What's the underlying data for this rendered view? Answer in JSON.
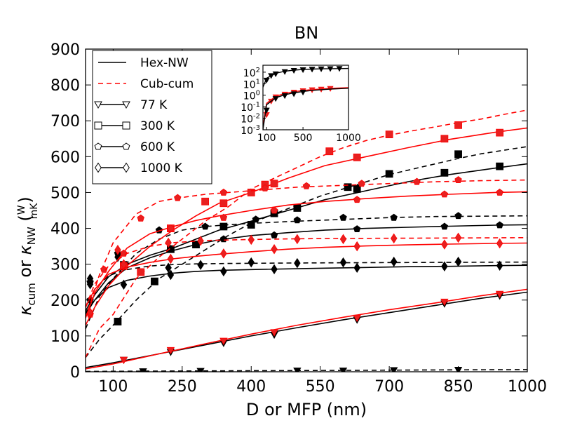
{
  "chart_data": {
    "type": "line",
    "title": "BN",
    "xlabel": "D or MFP (nm)",
    "ylabel_parts": [
      "κ",
      "cum",
      " or ",
      "κ",
      "NW",
      "W",
      "mK"
    ],
    "xlim": [
      40,
      1000
    ],
    "ylim": [
      0,
      900
    ],
    "x_ticks": [
      "100",
      "250",
      "400",
      "550",
      "700",
      "850",
      "1000"
    ],
    "x_tick_values": [
      100,
      250,
      400,
      550,
      700,
      850,
      1000
    ],
    "y_ticks": [
      "0",
      "100",
      "200",
      "300",
      "400",
      "500",
      "600",
      "700",
      "800",
      "900"
    ],
    "y_tick_values": [
      0,
      100,
      200,
      300,
      400,
      500,
      600,
      700,
      800,
      900
    ],
    "grid": false,
    "legend_position": "top-left",
    "legend": [
      {
        "label": "Hex-NW",
        "style": "solid",
        "color": "#000000",
        "marker": "none"
      },
      {
        "label": "Cub-cum",
        "style": "dashed",
        "color": "#ff0000",
        "marker": "none"
      },
      {
        "label": "77 K",
        "style": "solid",
        "color": "#000000",
        "marker": "triangle-down"
      },
      {
        "label": "300 K",
        "style": "solid",
        "color": "#000000",
        "marker": "square"
      },
      {
        "label": "600 K",
        "style": "solid",
        "color": "#000000",
        "marker": "pentagon"
      },
      {
        "label": "1000 K",
        "style": "solid",
        "color": "#000000",
        "marker": "diamond"
      }
    ],
    "colors": {
      "black": "#000000",
      "red": "#ff0000",
      "marker_red": "#e82020"
    },
    "series": [
      {
        "group": "Hex-NW",
        "temperature": "300 K",
        "color": "black",
        "style": "solid",
        "marker": "square",
        "x": [
          40,
          60,
          90,
          130,
          180,
          230,
          280,
          330,
          400,
          480,
          560,
          650,
          740,
          830,
          930,
          1000
        ],
        "y": [
          170,
          215,
          265,
          300,
          325,
          345,
          370,
          395,
          420,
          450,
          480,
          505,
          530,
          550,
          568,
          580
        ],
        "mx": [
          123,
          225,
          340,
          450,
          630,
          820,
          940
        ],
        "my": [
          298,
          342,
          405,
          442,
          510,
          555,
          573
        ]
      },
      {
        "group": "Hex-NW",
        "temperature": "600 K",
        "color": "black",
        "style": "solid",
        "marker": "pentagon",
        "x": [
          40,
          60,
          90,
          130,
          180,
          230,
          280,
          330,
          400,
          480,
          560,
          650,
          740,
          830,
          930,
          1000
        ],
        "y": [
          165,
          200,
          248,
          290,
          318,
          338,
          355,
          368,
          380,
          388,
          395,
          400,
          403,
          406,
          409,
          410
        ],
        "mx": [
          50,
          123,
          225,
          340,
          450,
          630,
          820,
          940
        ],
        "my": [
          200,
          292,
          343,
          370,
          381,
          398,
          405,
          409
        ]
      },
      {
        "group": "Hex-NW",
        "temperature": "1000 K",
        "color": "black",
        "style": "solid",
        "marker": "diamond",
        "x": [
          40,
          60,
          90,
          130,
          180,
          230,
          280,
          330,
          400,
          480,
          560,
          650,
          740,
          830,
          930,
          1000
        ],
        "y": [
          160,
          200,
          235,
          255,
          267,
          275,
          280,
          283,
          285,
          287,
          289,
          291,
          293,
          294,
          296,
          297
        ],
        "mx": [
          50,
          123,
          225,
          340,
          450,
          630,
          820,
          940
        ],
        "my": [
          244,
          243,
          270,
          280,
          286,
          290,
          294,
          296
        ]
      },
      {
        "group": "Hex-NW",
        "temperature": "77 K",
        "color": "black",
        "style": "solid",
        "marker": "triangle-down",
        "x": [
          40,
          100,
          200,
          300,
          400,
          500,
          600,
          700,
          800,
          900,
          1000
        ],
        "y": [
          12,
          25,
          50,
          75,
          100,
          123,
          145,
          165,
          185,
          205,
          222
        ],
        "mx": [
          123,
          225,
          340,
          450,
          630,
          820,
          940
        ],
        "my": [
          33,
          55,
          80,
          103,
          145,
          190,
          212
        ]
      },
      {
        "group": "Hex-NW",
        "temperature": "300 K",
        "color": "black",
        "style": "dashed",
        "marker": "square",
        "x": [
          40,
          70,
          100,
          150,
          200,
          250,
          300,
          350,
          400,
          450,
          500,
          550,
          600,
          650,
          700,
          750,
          800,
          850,
          900,
          950,
          1000
        ],
        "y": [
          40,
          90,
          130,
          200,
          260,
          300,
          340,
          380,
          415,
          440,
          465,
          490,
          510,
          530,
          550,
          565,
          580,
          595,
          608,
          618,
          628
        ],
        "mx": [
          110,
          190,
          280,
          400,
          500,
          610,
          700,
          850
        ],
        "my": [
          140,
          252,
          355,
          410,
          457,
          515,
          552,
          607
        ]
      },
      {
        "group": "Hex-NW",
        "temperature": "600 K",
        "color": "black",
        "style": "dashed",
        "marker": "pentagon",
        "x": [
          40,
          70,
          100,
          150,
          200,
          250,
          300,
          350,
          400,
          500,
          600,
          700,
          800,
          900,
          1000
        ],
        "y": [
          120,
          210,
          260,
          330,
          370,
          395,
          405,
          410,
          414,
          420,
          425,
          430,
          433,
          434,
          435
        ],
        "mx": [
          50,
          110,
          200,
          300,
          410,
          500,
          600,
          710,
          850
        ],
        "my": [
          250,
          330,
          395,
          405,
          425,
          423,
          430,
          430,
          435
        ]
      },
      {
        "group": "Hex-NW",
        "temperature": "1000 K",
        "color": "black",
        "style": "dashed",
        "marker": "diamond",
        "x": [
          40,
          60,
          90,
          130,
          180,
          230,
          280,
          350,
          450,
          600,
          800,
          1000
        ],
        "y": [
          180,
          230,
          268,
          285,
          295,
          299,
          301,
          302,
          303,
          304,
          305,
          306
        ],
        "mx": [
          50,
          110,
          220,
          290,
          400,
          500,
          600,
          710,
          850
        ],
        "my": [
          260,
          320,
          290,
          298,
          305,
          303,
          305,
          307,
          307
        ]
      },
      {
        "group": "Hex-NW",
        "temperature": "77 K",
        "color": "black",
        "style": "dashed",
        "marker": "triangle-down",
        "x": [
          40,
          200,
          400,
          600,
          800,
          1000
        ],
        "y": [
          1,
          2,
          3,
          4,
          5,
          6
        ],
        "mx": [
          165,
          290,
          500,
          600,
          710,
          850
        ],
        "my": [
          1,
          2,
          3,
          3,
          4,
          5
        ]
      },
      {
        "group": "Cub-cum",
        "temperature": "300 K",
        "color": "red",
        "style": "solid",
        "marker": "square",
        "x": [
          40,
          60,
          90,
          130,
          180,
          230,
          280,
          330,
          400,
          480,
          560,
          650,
          740,
          830,
          930,
          1000
        ],
        "y": [
          130,
          180,
          240,
          295,
          350,
          395,
          435,
          470,
          500,
          540,
          575,
          600,
          625,
          648,
          668,
          680
        ],
        "mx": [
          123,
          225,
          340,
          450,
          630,
          820,
          940
        ],
        "my": [
          295,
          400,
          470,
          525,
          598,
          650,
          667
        ]
      },
      {
        "group": "Cub-cum",
        "temperature": "600 K",
        "color": "red",
        "style": "solid",
        "marker": "pentagon",
        "x": [
          40,
          60,
          90,
          130,
          180,
          230,
          280,
          330,
          400,
          480,
          560,
          650,
          740,
          830,
          930,
          1000
        ],
        "y": [
          150,
          220,
          280,
          345,
          385,
          405,
          422,
          435,
          450,
          465,
          475,
          483,
          490,
          495,
          500,
          502
        ],
        "mx": [
          123,
          225,
          340,
          450,
          630,
          820,
          940
        ],
        "my": [
          330,
          400,
          430,
          450,
          480,
          495,
          500
        ]
      },
      {
        "group": "Cub-cum",
        "temperature": "1000 K",
        "color": "red",
        "style": "solid",
        "marker": "diamond",
        "x": [
          40,
          60,
          90,
          130,
          180,
          230,
          280,
          330,
          400,
          480,
          560,
          650,
          740,
          830,
          930,
          1000
        ],
        "y": [
          180,
          230,
          272,
          292,
          305,
          315,
          322,
          328,
          335,
          342,
          347,
          351,
          354,
          356,
          358,
          359
        ],
        "mx": [
          123,
          225,
          340,
          450,
          630,
          820,
          940
        ],
        "my": [
          300,
          315,
          330,
          342,
          350,
          355,
          358
        ]
      },
      {
        "group": "Cub-cum",
        "temperature": "77 K",
        "color": "red",
        "style": "solid",
        "marker": "triangle-down",
        "x": [
          40,
          100,
          200,
          300,
          400,
          500,
          600,
          700,
          800,
          900,
          1000
        ],
        "y": [
          8,
          22,
          50,
          78,
          105,
          130,
          152,
          173,
          192,
          212,
          230
        ],
        "mx": [
          123,
          225,
          340,
          450,
          630,
          820,
          940
        ],
        "my": [
          33,
          60,
          86,
          110,
          150,
          195,
          217
        ]
      },
      {
        "group": "Cub-cum",
        "temperature": "300 K",
        "color": "red",
        "style": "dashed",
        "marker": "square",
        "x": [
          40,
          70,
          100,
          150,
          200,
          250,
          300,
          350,
          400,
          450,
          500,
          550,
          600,
          650,
          700,
          750,
          800,
          850,
          900,
          950,
          1000
        ],
        "y": [
          40,
          120,
          160,
          260,
          320,
          370,
          420,
          460,
          510,
          540,
          570,
          600,
          625,
          645,
          660,
          672,
          683,
          695,
          705,
          718,
          730
        ],
        "mx": [
          160,
          300,
          400,
          430,
          570,
          700,
          850
        ],
        "my": [
          278,
          475,
          500,
          522,
          615,
          662,
          688
        ]
      },
      {
        "group": "Cub-cum",
        "temperature": "600 K",
        "color": "red",
        "style": "dashed",
        "marker": "pentagon",
        "x": [
          40,
          70,
          100,
          150,
          200,
          230,
          260,
          300,
          400,
          500,
          600,
          700,
          800,
          900,
          1000
        ],
        "y": [
          150,
          270,
          360,
          440,
          475,
          482,
          488,
          495,
          505,
          515,
          520,
          525,
          530,
          533,
          535
        ],
        "mx": [
          50,
          80,
          160,
          240,
          340,
          430,
          520,
          640,
          760,
          850
        ],
        "my": [
          160,
          285,
          428,
          485,
          500,
          512,
          518,
          525,
          530,
          535
        ]
      },
      {
        "group": "Cub-cum",
        "temperature": "1000 K",
        "color": "red",
        "style": "dashed",
        "marker": "diamond",
        "x": [
          40,
          60,
          90,
          130,
          180,
          230,
          300,
          400,
          500,
          600,
          800,
          1000
        ],
        "y": [
          180,
          245,
          295,
          330,
          350,
          360,
          366,
          369,
          371,
          372,
          373,
          374
        ],
        "mx": [
          50,
          110,
          220,
          290,
          400,
          500,
          600,
          710,
          850
        ],
        "my": [
          165,
          340,
          360,
          365,
          368,
          370,
          370,
          372,
          374
        ]
      }
    ],
    "inset": {
      "x_ticks": [
        "100",
        "500",
        "1000"
      ],
      "x_tick_values": [
        100,
        500,
        1000
      ],
      "xlim": [
        60,
        1000
      ],
      "y_scale": "log",
      "ylim": [
        0.001,
        400
      ],
      "y_ticks": [
        {
          "base": "10",
          "exp": "2"
        },
        {
          "base": "10",
          "exp": "1"
        },
        {
          "base": "10",
          "exp": "0"
        },
        {
          "base": "10",
          "exp": "-1"
        },
        {
          "base": "10",
          "exp": "-2"
        },
        {
          "base": "10",
          "exp": "-3"
        }
      ],
      "y_tick_values": [
        100,
        10,
        1,
        0.1,
        0.01,
        0.001
      ],
      "series": [
        {
          "color": "black",
          "x": [
            60,
            100,
            200,
            300,
            400,
            500,
            600,
            700,
            800,
            900,
            1000
          ],
          "y": [
            5,
            30,
            80,
            120,
            150,
            170,
            185,
            195,
            200,
            205,
            210
          ],
          "mx": [
            100,
            150,
            200,
            300,
            400,
            500,
            600,
            700,
            800,
            900
          ],
          "my": [
            20,
            50,
            70,
            110,
            140,
            160,
            180,
            190,
            200,
            205
          ]
        },
        {
          "color": "red",
          "x": [
            60,
            100,
            200,
            300,
            400,
            500,
            600,
            700,
            800,
            900,
            1000
          ],
          "y": [
            0.002,
            0.2,
            0.8,
            1.4,
            2,
            2.6,
            3.1,
            3.5,
            3.9,
            4.2,
            4.5
          ],
          "mx": [
            100,
            150,
            200,
            300,
            400,
            500,
            600,
            700,
            800
          ],
          "my": [
            0.02,
            0.3,
            0.7,
            1.2,
            1.8,
            2.4,
            2.9,
            3.3,
            3.8
          ]
        },
        {
          "color": "black",
          "x": [
            60,
            100,
            200,
            300,
            400,
            500,
            600,
            700,
            800,
            900,
            1000
          ],
          "y": [
            0.001,
            0.15,
            0.6,
            1.1,
            1.6,
            2.1,
            2.6,
            3.0,
            3.4,
            3.7,
            4.0
          ],
          "mx": [
            100,
            200,
            300,
            400,
            500
          ],
          "my": [
            0.05,
            0.5,
            0.9,
            1.3,
            1.8
          ]
        }
      ]
    }
  }
}
